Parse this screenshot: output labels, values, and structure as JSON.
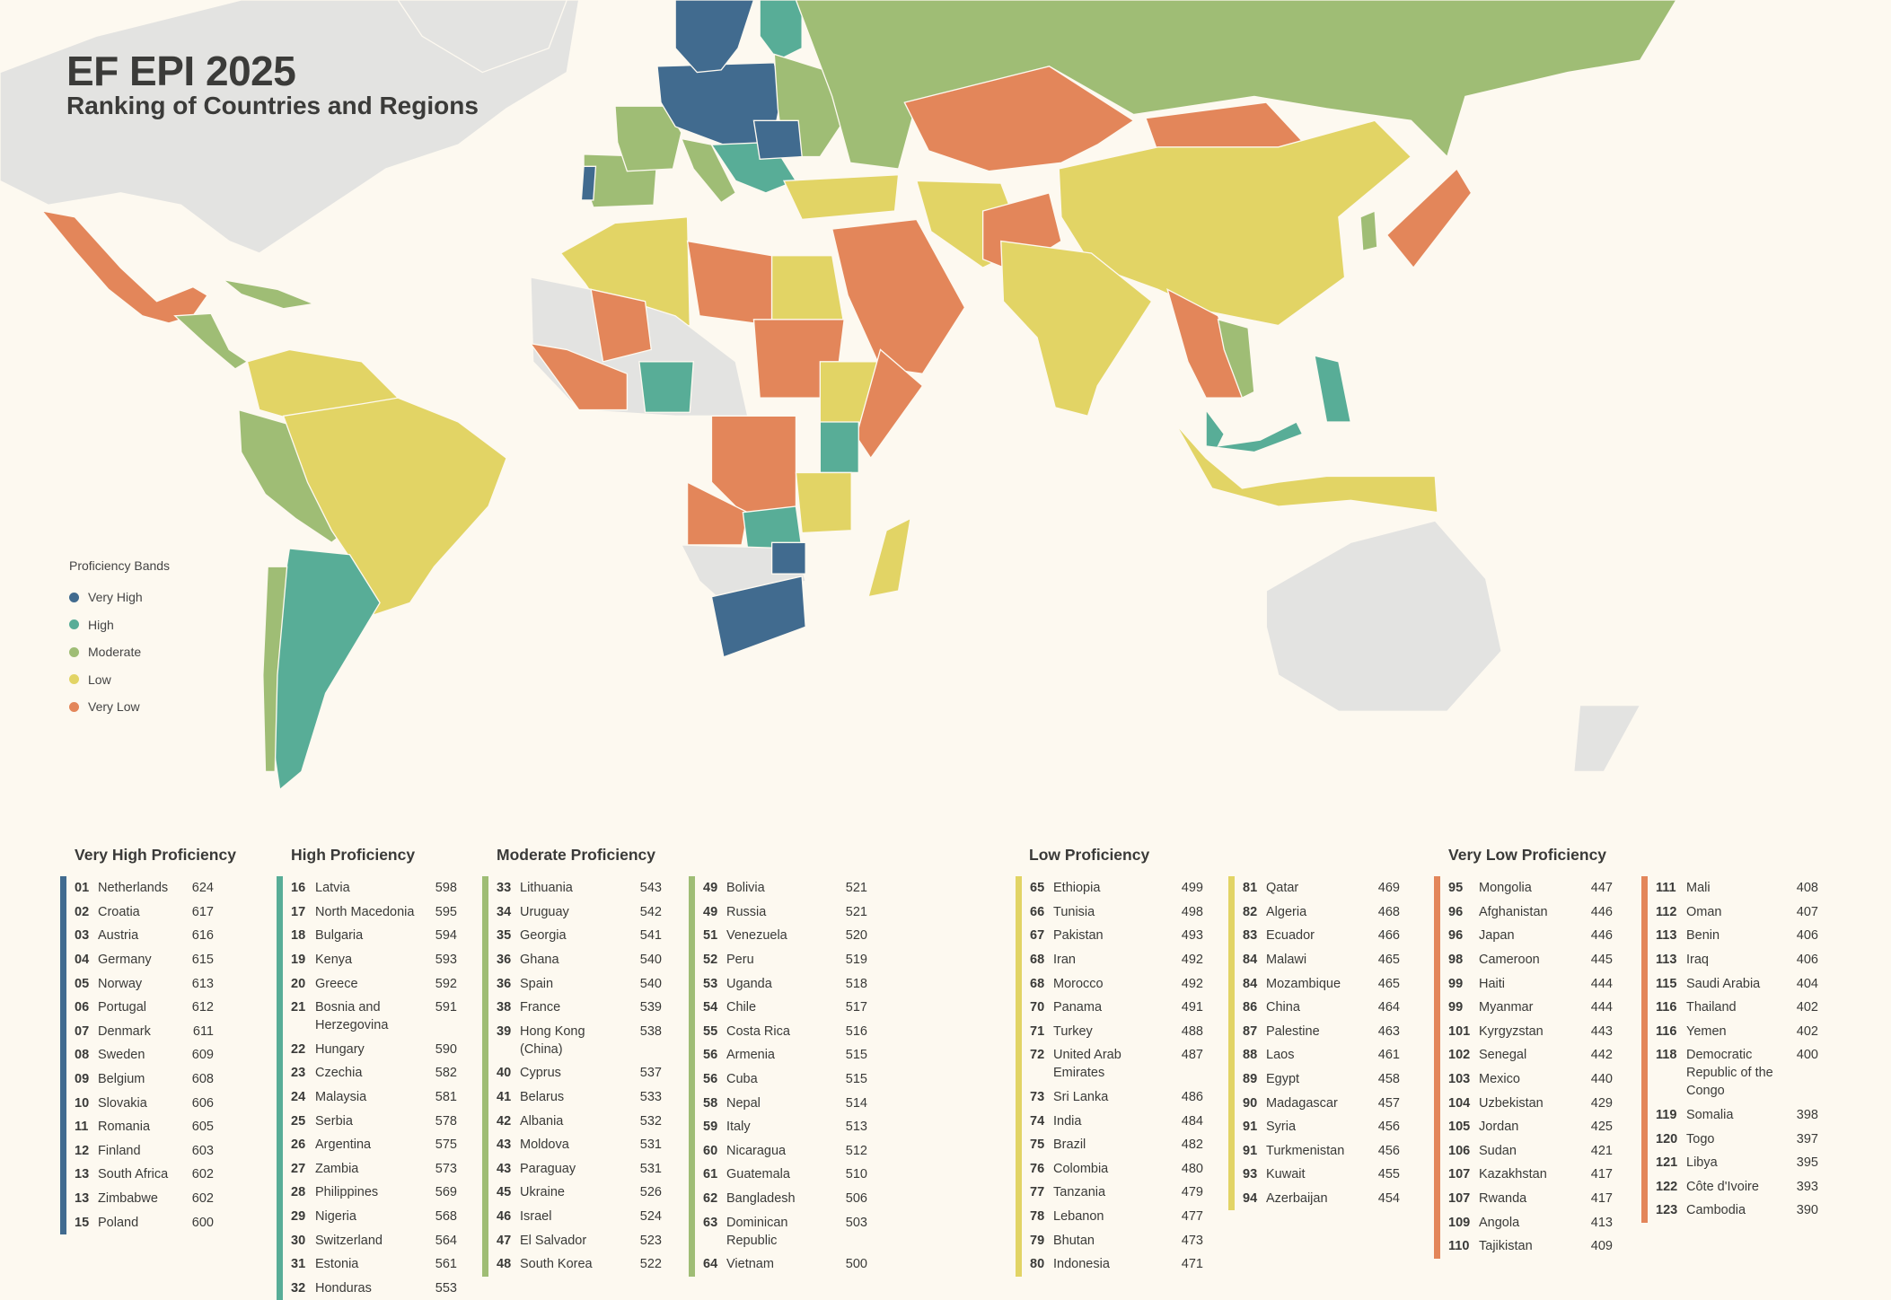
{
  "header": {
    "title": "EF EPI 2025",
    "subtitle": "Ranking of Countries and Regions"
  },
  "colors": {
    "very_high": "#416b8f",
    "high": "#58ad97",
    "moderate": "#9fbd75",
    "low": "#e2d465",
    "very_low": "#e3865a",
    "no_data": "#e3e3e1",
    "background": "#fdf9f0"
  },
  "legend": {
    "title": "Proficiency Bands",
    "items": [
      {
        "label": "Very High",
        "color": "#416b8f"
      },
      {
        "label": "High",
        "color": "#58ad97"
      },
      {
        "label": "Moderate",
        "color": "#9fbd75"
      },
      {
        "label": "Low",
        "color": "#e2d465"
      },
      {
        "label": "Very Low",
        "color": "#e3865a"
      }
    ]
  },
  "groups": [
    {
      "title": "Very High Proficiency",
      "color": "#416b8f",
      "columns": [
        [
          [
            "01",
            "Netherlands",
            "624"
          ],
          [
            "02",
            "Croatia",
            "617"
          ],
          [
            "03",
            "Austria",
            "616"
          ],
          [
            "04",
            "Germany",
            "615"
          ],
          [
            "05",
            "Norway",
            "613"
          ],
          [
            "06",
            "Portugal",
            "612"
          ],
          [
            "07",
            "Denmark",
            "611"
          ],
          [
            "08",
            "Sweden",
            "609"
          ],
          [
            "09",
            "Belgium",
            "608"
          ],
          [
            "10",
            "Slovakia",
            "606"
          ],
          [
            "11",
            "Romania",
            "605"
          ],
          [
            "12",
            "Finland",
            "603"
          ],
          [
            "13",
            "South Africa",
            "602"
          ],
          [
            "13",
            "Zimbabwe",
            "602"
          ],
          [
            "15",
            "Poland",
            "600"
          ]
        ]
      ]
    },
    {
      "title": "High Proficiency",
      "color": "#58ad97",
      "columns": [
        [
          [
            "16",
            "Latvia",
            "598"
          ],
          [
            "17",
            "North Macedonia",
            "595"
          ],
          [
            "18",
            "Bulgaria",
            "594"
          ],
          [
            "19",
            "Kenya",
            "593"
          ],
          [
            "20",
            "Greece",
            "592"
          ],
          [
            "21",
            "Bosnia and Herzegovina",
            "591"
          ],
          [
            "22",
            "Hungary",
            "590"
          ],
          [
            "23",
            "Czechia",
            "582"
          ],
          [
            "24",
            "Malaysia",
            "581"
          ],
          [
            "25",
            "Serbia",
            "578"
          ],
          [
            "26",
            "Argentina",
            "575"
          ],
          [
            "27",
            "Zambia",
            "573"
          ],
          [
            "28",
            "Philippines",
            "569"
          ],
          [
            "29",
            "Nigeria",
            "568"
          ],
          [
            "30",
            "Switzerland",
            "564"
          ],
          [
            "31",
            "Estonia",
            "561"
          ],
          [
            "32",
            "Honduras",
            "553"
          ]
        ]
      ]
    },
    {
      "title": "Moderate Proficiency",
      "color": "#9fbd75",
      "columns": [
        [
          [
            "33",
            "Lithuania",
            "543"
          ],
          [
            "34",
            "Uruguay",
            "542"
          ],
          [
            "35",
            "Georgia",
            "541"
          ],
          [
            "36",
            "Ghana",
            "540"
          ],
          [
            "36",
            "Spain",
            "540"
          ],
          [
            "38",
            "France",
            "539"
          ],
          [
            "39",
            "Hong Kong (China)",
            "538"
          ],
          [
            "40",
            "Cyprus",
            "537"
          ],
          [
            "41",
            "Belarus",
            "533"
          ],
          [
            "42",
            "Albania",
            "532"
          ],
          [
            "43",
            "Moldova",
            "531"
          ],
          [
            "43",
            "Paraguay",
            "531"
          ],
          [
            "45",
            "Ukraine",
            "526"
          ],
          [
            "46",
            "Israel",
            "524"
          ],
          [
            "47",
            "El Salvador",
            "523"
          ],
          [
            "48",
            "South Korea",
            "522"
          ]
        ],
        [
          [
            "49",
            "Bolivia",
            "521"
          ],
          [
            "49",
            "Russia",
            "521"
          ],
          [
            "51",
            "Venezuela",
            "520"
          ],
          [
            "52",
            "Peru",
            "519"
          ],
          [
            "53",
            "Uganda",
            "518"
          ],
          [
            "54",
            "Chile",
            "517"
          ],
          [
            "55",
            "Costa Rica",
            "516"
          ],
          [
            "56",
            "Armenia",
            "515"
          ],
          [
            "56",
            "Cuba",
            "515"
          ],
          [
            "58",
            "Nepal",
            "514"
          ],
          [
            "59",
            "Italy",
            "513"
          ],
          [
            "60",
            "Nicaragua",
            "512"
          ],
          [
            "61",
            "Guatemala",
            "510"
          ],
          [
            "62",
            "Bangladesh",
            "506"
          ],
          [
            "63",
            "Dominican Republic",
            "503"
          ],
          [
            "64",
            "Vietnam",
            "500"
          ]
        ]
      ]
    },
    {
      "title": "Low Proficiency",
      "color": "#e2d465",
      "columns": [
        [
          [
            "65",
            "Ethiopia",
            "499"
          ],
          [
            "66",
            "Tunisia",
            "498"
          ],
          [
            "67",
            "Pakistan",
            "493"
          ],
          [
            "68",
            "Iran",
            "492"
          ],
          [
            "68",
            "Morocco",
            "492"
          ],
          [
            "70",
            "Panama",
            "491"
          ],
          [
            "71",
            "Turkey",
            "488"
          ],
          [
            "72",
            "United Arab Emirates",
            "487"
          ],
          [
            "73",
            "Sri Lanka",
            "486"
          ],
          [
            "74",
            "India",
            "484"
          ],
          [
            "75",
            "Brazil",
            "482"
          ],
          [
            "76",
            "Colombia",
            "480"
          ],
          [
            "77",
            "Tanzania",
            "479"
          ],
          [
            "78",
            "Lebanon",
            "477"
          ],
          [
            "79",
            "Bhutan",
            "473"
          ],
          [
            "80",
            "Indonesia",
            "471"
          ]
        ],
        [
          [
            "81",
            "Qatar",
            "469"
          ],
          [
            "82",
            "Algeria",
            "468"
          ],
          [
            "83",
            "Ecuador",
            "466"
          ],
          [
            "84",
            "Malawi",
            "465"
          ],
          [
            "84",
            "Mozambique",
            "465"
          ],
          [
            "86",
            "China",
            "464"
          ],
          [
            "87",
            "Palestine",
            "463"
          ],
          [
            "88",
            "Laos",
            "461"
          ],
          [
            "89",
            "Egypt",
            "458"
          ],
          [
            "90",
            "Madagascar",
            "457"
          ],
          [
            "91",
            "Syria",
            "456"
          ],
          [
            "91",
            "Turkmenistan",
            "456"
          ],
          [
            "93",
            "Kuwait",
            "455"
          ],
          [
            "94",
            "Azerbaijan",
            "454"
          ]
        ]
      ]
    },
    {
      "title": "Very Low Proficiency",
      "color": "#e3865a",
      "columns": [
        [
          [
            "95",
            "Mongolia",
            "447"
          ],
          [
            "96",
            "Afghanistan",
            "446"
          ],
          [
            "96",
            "Japan",
            "446"
          ],
          [
            "98",
            "Cameroon",
            "445"
          ],
          [
            "99",
            "Haiti",
            "444"
          ],
          [
            "99",
            "Myanmar",
            "444"
          ],
          [
            "101",
            "Kyrgyzstan",
            "443"
          ],
          [
            "102",
            "Senegal",
            "442"
          ],
          [
            "103",
            "Mexico",
            "440"
          ],
          [
            "104",
            "Uzbekistan",
            "429"
          ],
          [
            "105",
            "Jordan",
            "425"
          ],
          [
            "106",
            "Sudan",
            "421"
          ],
          [
            "107",
            "Kazakhstan",
            "417"
          ],
          [
            "107",
            "Rwanda",
            "417"
          ],
          [
            "109",
            "Angola",
            "413"
          ],
          [
            "110",
            "Tajikistan",
            "409"
          ]
        ],
        [
          [
            "111",
            "Mali",
            "408"
          ],
          [
            "112",
            "Oman",
            "407"
          ],
          [
            "113",
            "Benin",
            "406"
          ],
          [
            "113",
            "Iraq",
            "406"
          ],
          [
            "115",
            "Saudi Arabia",
            "404"
          ],
          [
            "116",
            "Thailand",
            "402"
          ],
          [
            "116",
            "Yemen",
            "402"
          ],
          [
            "118",
            "Democratic Republic of the Congo",
            "400"
          ],
          [
            "119",
            "Somalia",
            "398"
          ],
          [
            "120",
            "Togo",
            "397"
          ],
          [
            "121",
            "Libya",
            "395"
          ],
          [
            "122",
            "Côte d'Ivoire",
            "393"
          ],
          [
            "123",
            "Cambodia",
            "390"
          ]
        ]
      ]
    }
  ]
}
